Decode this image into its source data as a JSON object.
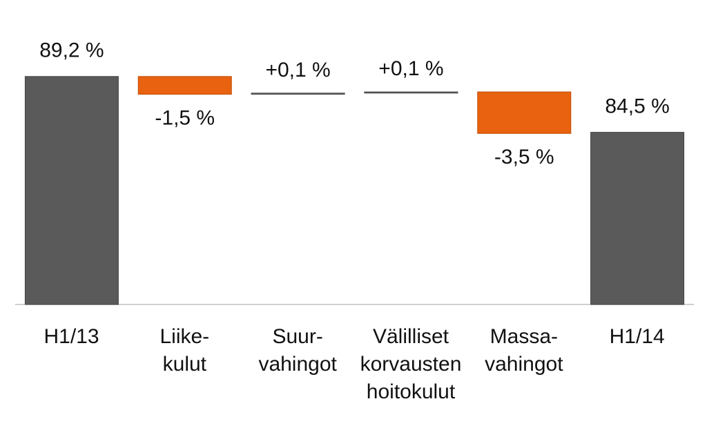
{
  "chart_data": {
    "type": "waterfall",
    "categories": [
      "H1/13",
      "Liike-\nkulut",
      "Suur-\nvahingot",
      "Välilliset\nkorvausten\nhoitokulut",
      "Massa-\nvahingot",
      "H1/14"
    ],
    "kinds": [
      "total",
      "relative",
      "relative",
      "relative",
      "relative",
      "total"
    ],
    "values": [
      89.2,
      -1.5,
      0.1,
      0.1,
      -3.5,
      84.5
    ],
    "value_labels": [
      "89,2 %",
      "-1,5 %",
      "+0,1 %",
      "+0,1 %",
      "-3,5 %",
      "84,5 %"
    ],
    "colors": {
      "total": "#5a5a5a",
      "decrease": "#e8620f",
      "increase": "#6b6b6b"
    },
    "ylim": [
      70,
      95
    ]
  }
}
